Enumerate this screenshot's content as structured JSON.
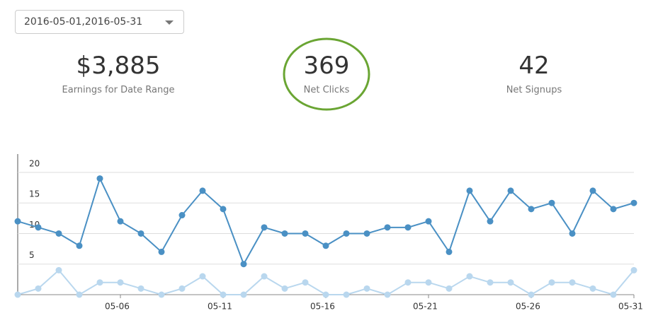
{
  "date_picker": {
    "value": "2016-05-01,2016-05-31"
  },
  "stats": [
    {
      "value": "$3,885",
      "label": "Earnings for Date Range"
    },
    {
      "value": "369",
      "label": "Net Clicks"
    },
    {
      "value": "42",
      "label": "Net Signups"
    }
  ],
  "chart_data": {
    "type": "line",
    "categories": [
      null,
      null,
      null,
      null,
      null,
      "05-06",
      null,
      null,
      null,
      null,
      "05-11",
      null,
      null,
      null,
      null,
      "05-16",
      null,
      null,
      null,
      null,
      "05-21",
      null,
      null,
      null,
      null,
      "05-26",
      null,
      null,
      null,
      null,
      "05-31"
    ],
    "series": [
      {
        "color": "#4a90c4",
        "values": [
          12,
          11,
          10,
          8,
          19,
          12,
          10,
          7,
          13,
          17,
          14,
          5,
          11,
          10,
          10,
          8,
          10,
          10,
          11,
          11,
          12,
          7,
          17,
          12,
          17,
          14,
          15,
          10,
          17,
          14,
          15
        ]
      },
      {
        "color": "#b9d7ee",
        "values": [
          0,
          1,
          4,
          0,
          2,
          2,
          1,
          0,
          1,
          3,
          0,
          0,
          3,
          1,
          2,
          0,
          0,
          1,
          0,
          2,
          2,
          1,
          3,
          2,
          2,
          0,
          2,
          2,
          1,
          0,
          4
        ]
      }
    ],
    "ylim": [
      0,
      23
    ],
    "yticks": [
      5,
      10,
      15,
      20
    ],
    "grid": true
  }
}
